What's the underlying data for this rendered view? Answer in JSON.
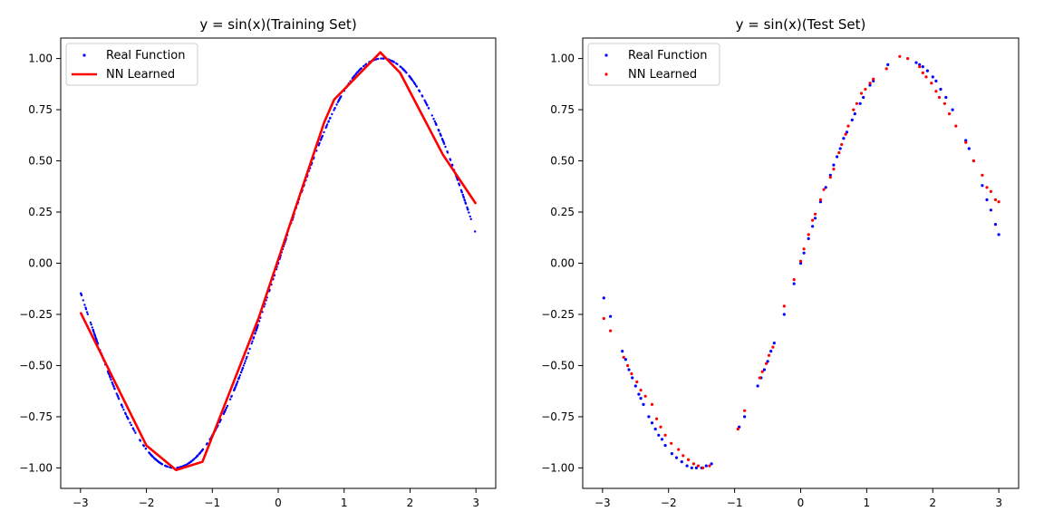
{
  "chart_data": [
    {
      "type": "scatter+line",
      "title": "y = sin(x)(Training Set)",
      "xlim": [
        -3.3,
        3.3
      ],
      "ylim": [
        -1.1,
        1.1
      ],
      "xticks": [
        -3,
        -2,
        -1,
        0,
        1,
        2,
        3
      ],
      "xtick_labels": [
        "−3",
        "−2",
        "−1",
        "0",
        "1",
        "2",
        "3"
      ],
      "yticks": [
        -1.0,
        -0.75,
        -0.5,
        -0.25,
        0.0,
        0.25,
        0.5,
        0.75,
        1.0
      ],
      "ytick_labels": [
        "−1.00",
        "−0.75",
        "−0.50",
        "−0.25",
        "0.00",
        "0.25",
        "0.50",
        "0.75",
        "1.00"
      ],
      "legend": {
        "position": "top-left",
        "entries": [
          "Real Function",
          "NN Learned"
        ]
      },
      "series": [
        {
          "name": "Real Function",
          "style": "scatter",
          "color": "#0000ff",
          "function": "sin",
          "x_range": [
            -3.0,
            3.0
          ],
          "count": 500
        },
        {
          "name": "NN Learned",
          "style": "line",
          "color": "#ff0000",
          "x": [
            -3.0,
            -2.0,
            -1.55,
            -1.15,
            -0.3,
            0.7,
            0.85,
            1.55,
            1.85,
            2.5,
            3.0
          ],
          "y": [
            -0.24,
            -0.89,
            -1.01,
            -0.97,
            -0.27,
            0.69,
            0.8,
            1.03,
            0.93,
            0.53,
            0.29
          ]
        }
      ]
    },
    {
      "type": "scatter",
      "title": "y = sin(x)(Test Set)",
      "xlim": [
        -3.3,
        3.3
      ],
      "ylim": [
        -1.1,
        1.1
      ],
      "xticks": [
        -3,
        -2,
        -1,
        0,
        1,
        2,
        3
      ],
      "xtick_labels": [
        "−3",
        "−2",
        "−1",
        "0",
        "1",
        "2",
        "3"
      ],
      "yticks": [
        -1.0,
        -0.75,
        -0.5,
        -0.25,
        0.0,
        0.25,
        0.5,
        0.75,
        1.0
      ],
      "ytick_labels": [
        "−1.00",
        "−0.75",
        "−0.50",
        "−0.25",
        "0.00",
        "0.25",
        "0.50",
        "0.75",
        "1.00"
      ],
      "legend": {
        "position": "top-left",
        "entries": [
          "Real Function",
          "NN Learned"
        ]
      },
      "series": [
        {
          "name": "Real Function",
          "style": "scatter",
          "color": "#0000ff",
          "x": [
            -2.98,
            -2.88,
            -2.7,
            -2.65,
            -2.6,
            -2.55,
            -2.5,
            -2.45,
            -2.42,
            -2.38,
            -2.3,
            -2.25,
            -2.2,
            -2.15,
            -2.1,
            -2.05,
            -1.95,
            -1.88,
            -1.8,
            -1.72,
            -1.65,
            -1.58,
            -1.5,
            -1.43,
            -1.35,
            -0.93,
            -0.85,
            -0.65,
            -0.6,
            -0.55,
            -0.5,
            -0.45,
            -0.4,
            -0.25,
            -0.1,
            0.0,
            0.05,
            0.12,
            0.18,
            0.22,
            0.3,
            0.38,
            0.45,
            0.5,
            0.55,
            0.6,
            0.65,
            0.7,
            0.78,
            0.82,
            0.9,
            0.95,
            1.05,
            1.1,
            1.32,
            1.75,
            1.8,
            1.85,
            1.92,
            2.0,
            2.05,
            2.12,
            2.2,
            2.3,
            2.5,
            2.55,
            2.62,
            2.75,
            2.82,
            2.88,
            2.95,
            3.0
          ],
          "y": [
            -0.17,
            -0.26,
            -0.43,
            -0.47,
            -0.52,
            -0.56,
            -0.6,
            -0.64,
            -0.66,
            -0.69,
            -0.75,
            -0.78,
            -0.81,
            -0.84,
            -0.86,
            -0.89,
            -0.93,
            -0.95,
            -0.97,
            -0.99,
            -1.0,
            -1.0,
            -1.0,
            -0.99,
            -0.98,
            -0.8,
            -0.75,
            -0.6,
            -0.56,
            -0.52,
            -0.48,
            -0.43,
            -0.39,
            -0.25,
            -0.1,
            0.0,
            0.05,
            0.12,
            0.18,
            0.22,
            0.3,
            0.37,
            0.43,
            0.48,
            0.52,
            0.56,
            0.61,
            0.64,
            0.7,
            0.73,
            0.78,
            0.81,
            0.87,
            0.89,
            0.97,
            0.98,
            0.97,
            0.96,
            0.94,
            0.91,
            0.89,
            0.85,
            0.81,
            0.75,
            0.6,
            0.56,
            0.5,
            0.38,
            0.31,
            0.26,
            0.19,
            0.14
          ]
        },
        {
          "name": "NN Learned",
          "style": "scatter",
          "color": "#ff0000",
          "x": [
            -2.98,
            -2.88,
            -2.68,
            -2.62,
            -2.56,
            -2.48,
            -2.42,
            -2.35,
            -2.25,
            -2.18,
            -2.12,
            -2.05,
            -1.96,
            -1.85,
            -1.78,
            -1.7,
            -1.62,
            -1.55,
            -1.48,
            -1.38,
            -0.95,
            -0.85,
            -0.62,
            -0.58,
            -0.52,
            -0.48,
            -0.42,
            -0.25,
            -0.1,
            0.0,
            0.05,
            0.12,
            0.18,
            0.22,
            0.3,
            0.35,
            0.45,
            0.5,
            0.58,
            0.62,
            0.68,
            0.72,
            0.8,
            0.85,
            0.92,
            0.98,
            1.05,
            1.1,
            1.3,
            1.5,
            1.62,
            1.8,
            1.85,
            1.9,
            1.98,
            2.05,
            2.1,
            2.18,
            2.25,
            2.35,
            2.5,
            2.62,
            2.75,
            2.82,
            2.88,
            2.95,
            3.0
          ],
          "y": [
            -0.27,
            -0.33,
            -0.46,
            -0.5,
            -0.54,
            -0.58,
            -0.62,
            -0.65,
            -0.69,
            -0.76,
            -0.8,
            -0.84,
            -0.88,
            -0.91,
            -0.94,
            -0.96,
            -0.98,
            -0.99,
            -1.0,
            -0.99,
            -0.81,
            -0.72,
            -0.56,
            -0.53,
            -0.49,
            -0.45,
            -0.41,
            -0.21,
            -0.08,
            0.01,
            0.07,
            0.14,
            0.21,
            0.24,
            0.31,
            0.36,
            0.42,
            0.46,
            0.54,
            0.58,
            0.63,
            0.67,
            0.75,
            0.78,
            0.83,
            0.85,
            0.88,
            0.9,
            0.95,
            1.01,
            1.0,
            0.96,
            0.93,
            0.91,
            0.88,
            0.84,
            0.81,
            0.78,
            0.73,
            0.67,
            0.59,
            0.5,
            0.43,
            0.37,
            0.35,
            0.31,
            0.3
          ]
        }
      ]
    }
  ]
}
